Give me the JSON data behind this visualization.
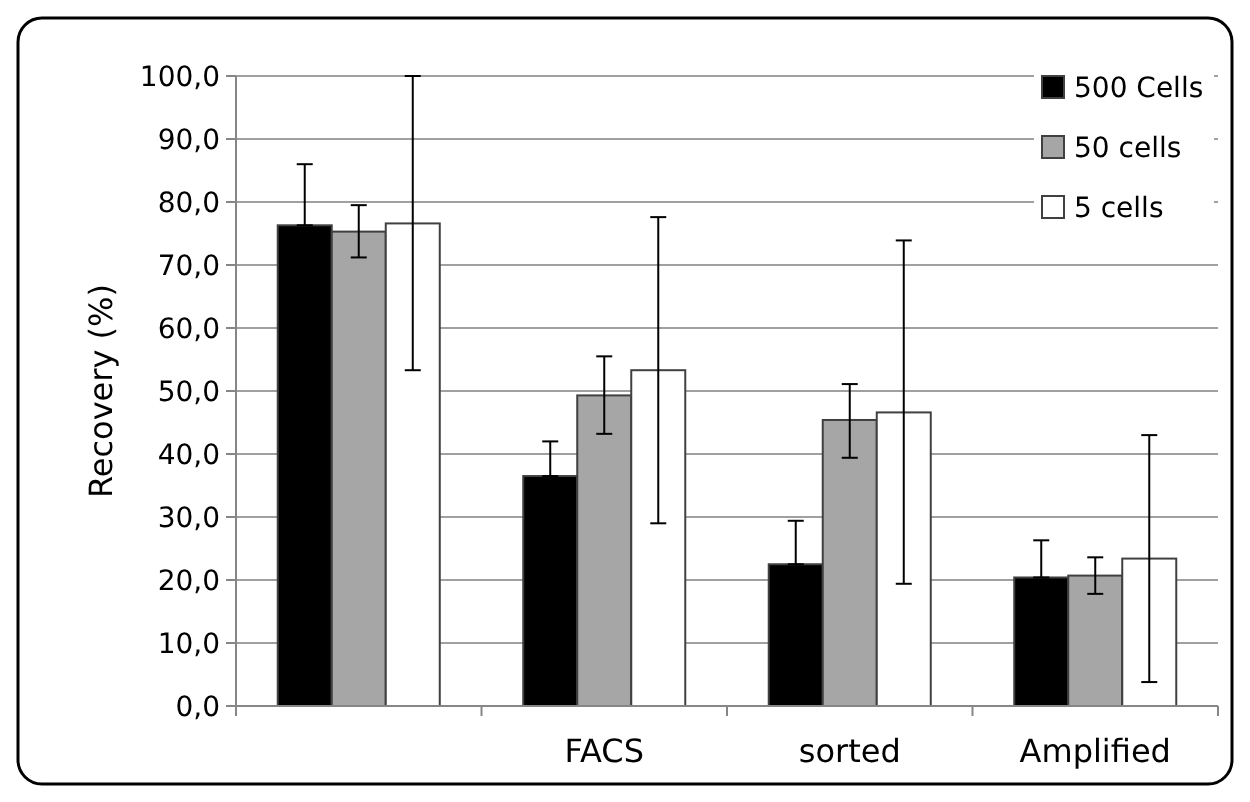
{
  "chart_data": {
    "type": "bar",
    "ylabel": "Recovery (%)",
    "categories": [
      null,
      "FACS",
      "sorted",
      "Amplified"
    ],
    "series": [
      {
        "name": "500 Cells",
        "color": "#000000",
        "values": [
          76.3,
          36.5,
          22.5,
          20.4
        ],
        "errors": [
          [
            76.3,
            86.0
          ],
          [
            36.5,
            42.0
          ],
          [
            22.5,
            29.4
          ],
          [
            20.4,
            26.3
          ]
        ]
      },
      {
        "name": "50 cells",
        "color": "#a6a6a6",
        "values": [
          75.3,
          49.3,
          45.4,
          20.7
        ],
        "errors": [
          [
            71.2,
            79.5
          ],
          [
            43.2,
            55.5
          ],
          [
            39.4,
            51.1
          ],
          [
            17.8,
            23.6
          ]
        ]
      },
      {
        "name": "5 cells",
        "color": "#ffffff",
        "values": [
          76.6,
          53.3,
          46.6,
          23.4
        ],
        "errors": [
          [
            53.3,
            100.0
          ],
          [
            29.0,
            77.6
          ],
          [
            19.4,
            73.9
          ],
          [
            3.8,
            43.0
          ]
        ]
      }
    ],
    "ylim": [
      0,
      100
    ],
    "yticks": [
      {
        "value": 0,
        "label": "0,0"
      },
      {
        "value": 10,
        "label": "10,0"
      },
      {
        "value": 20,
        "label": "20,0"
      },
      {
        "value": 30,
        "label": "30,0"
      },
      {
        "value": 40,
        "label": "40,0"
      },
      {
        "value": 50,
        "label": "50,0"
      },
      {
        "value": 60,
        "label": "60,0"
      },
      {
        "value": 70,
        "label": "70,0"
      },
      {
        "value": 80,
        "label": "80,0"
      },
      {
        "value": 90,
        "label": "90,0"
      },
      {
        "value": 100,
        "label": "100,0"
      }
    ],
    "grid": "y",
    "legend": "top right"
  }
}
